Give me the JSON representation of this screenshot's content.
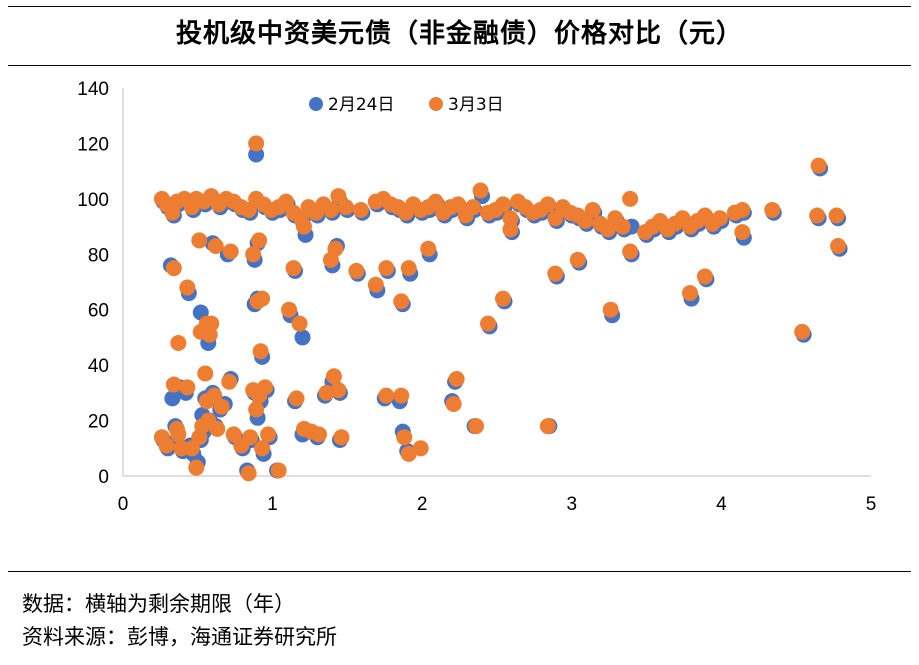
{
  "title": "投机级中资美元债（非金融债）价格对比（元）",
  "notes": {
    "data_note": "数据：横轴为剩余期限（年）",
    "source": "资料来源：彭博，海通证券研究所"
  },
  "chart_data": {
    "type": "scatter",
    "title": "投机级中资美元债（非金融债）价格对比（元）",
    "xlabel": "",
    "ylabel": "",
    "xlim": [
      0,
      5
    ],
    "ylim": [
      0,
      140
    ],
    "xticks": [
      "0",
      "1",
      "2",
      "3",
      "4",
      "5"
    ],
    "yticks": [
      "0",
      "20",
      "40",
      "60",
      "80",
      "100",
      "120",
      "140"
    ],
    "grid": false,
    "legend_position": "top-center",
    "series": [
      {
        "name": "2月24日",
        "color": "#4472C4",
        "points": [
          [
            0.27,
            99
          ],
          [
            0.3,
            97
          ],
          [
            0.34,
            94
          ],
          [
            0.37,
            98
          ],
          [
            0.42,
            99
          ],
          [
            0.47,
            96
          ],
          [
            0.5,
            99
          ],
          [
            0.55,
            98
          ],
          [
            0.6,
            100
          ],
          [
            0.65,
            97
          ],
          [
            0.7,
            99
          ],
          [
            0.75,
            98
          ],
          [
            0.8,
            96
          ],
          [
            0.85,
            95
          ],
          [
            0.9,
            99
          ],
          [
            0.95,
            97
          ],
          [
            1.0,
            95
          ],
          [
            1.05,
            96
          ],
          [
            1.1,
            98
          ],
          [
            1.15,
            94
          ],
          [
            1.2,
            92
          ],
          [
            1.25,
            96
          ],
          [
            1.3,
            94
          ],
          [
            1.35,
            97
          ],
          [
            1.4,
            95
          ],
          [
            1.45,
            99
          ],
          [
            1.5,
            96
          ],
          [
            1.6,
            95
          ],
          [
            1.7,
            98
          ],
          [
            1.75,
            99
          ],
          [
            1.8,
            97
          ],
          [
            1.85,
            96
          ],
          [
            1.9,
            94
          ],
          [
            1.95,
            97
          ],
          [
            2.0,
            95
          ],
          [
            2.05,
            96
          ],
          [
            2.1,
            98
          ],
          [
            2.15,
            94
          ],
          [
            2.2,
            96
          ],
          [
            2.25,
            97
          ],
          [
            2.3,
            93
          ],
          [
            2.35,
            96
          ],
          [
            2.4,
            101
          ],
          [
            2.45,
            94
          ],
          [
            2.5,
            95
          ],
          [
            2.55,
            97
          ],
          [
            2.6,
            92
          ],
          [
            2.65,
            98
          ],
          [
            2.7,
            96
          ],
          [
            2.75,
            94
          ],
          [
            2.8,
            95
          ],
          [
            2.85,
            97
          ],
          [
            2.9,
            92
          ],
          [
            2.95,
            96
          ],
          [
            3.0,
            94
          ],
          [
            3.05,
            93
          ],
          [
            3.1,
            91
          ],
          [
            3.15,
            95
          ],
          [
            3.2,
            90
          ],
          [
            3.25,
            88
          ],
          [
            3.3,
            92
          ],
          [
            3.35,
            89
          ],
          [
            3.4,
            90
          ],
          [
            3.5,
            87
          ],
          [
            3.55,
            89
          ],
          [
            3.6,
            91
          ],
          [
            3.65,
            88
          ],
          [
            3.7,
            90
          ],
          [
            3.75,
            92
          ],
          [
            3.8,
            89
          ],
          [
            3.85,
            91
          ],
          [
            3.9,
            93
          ],
          [
            3.95,
            90
          ],
          [
            4.0,
            92
          ],
          [
            4.1,
            94
          ],
          [
            4.15,
            95
          ],
          [
            4.35,
            95
          ],
          [
            4.65,
            93
          ],
          [
            4.78,
            93
          ],
          [
            0.32,
            76
          ],
          [
            0.44,
            66
          ],
          [
            0.52,
            59
          ],
          [
            0.55,
            53
          ],
          [
            0.57,
            48
          ],
          [
            0.6,
            84
          ],
          [
            0.7,
            80
          ],
          [
            0.88,
            78
          ],
          [
            0.88,
            62
          ],
          [
            0.93,
            43
          ],
          [
            0.89,
            116
          ],
          [
            0.9,
            84
          ],
          [
            0.9,
            64
          ],
          [
            1.12,
            58
          ],
          [
            1.15,
            74
          ],
          [
            1.2,
            50
          ],
          [
            1.22,
            87
          ],
          [
            1.4,
            76
          ],
          [
            1.43,
            83
          ],
          [
            1.57,
            73
          ],
          [
            1.7,
            67
          ],
          [
            1.77,
            74
          ],
          [
            1.87,
            62
          ],
          [
            1.92,
            73
          ],
          [
            2.05,
            80
          ],
          [
            2.45,
            54
          ],
          [
            2.55,
            63
          ],
          [
            2.6,
            88
          ],
          [
            2.9,
            72
          ],
          [
            3.05,
            77
          ],
          [
            3.27,
            58
          ],
          [
            3.4,
            80
          ],
          [
            3.8,
            64
          ],
          [
            3.9,
            71
          ],
          [
            4.15,
            86
          ],
          [
            4.55,
            51
          ],
          [
            4.66,
            111
          ],
          [
            4.79,
            82
          ],
          [
            0.27,
            13
          ],
          [
            0.3,
            10
          ],
          [
            0.33,
            28
          ],
          [
            0.35,
            18
          ],
          [
            0.36,
            12
          ],
          [
            0.38,
            32
          ],
          [
            0.4,
            9
          ],
          [
            0.42,
            30
          ],
          [
            0.45,
            11
          ],
          [
            0.47,
            8
          ],
          [
            0.5,
            5
          ],
          [
            0.52,
            13
          ],
          [
            0.53,
            22
          ],
          [
            0.54,
            16
          ],
          [
            0.55,
            28
          ],
          [
            0.58,
            20
          ],
          [
            0.6,
            30
          ],
          [
            0.62,
            18
          ],
          [
            0.65,
            24
          ],
          [
            0.68,
            26
          ],
          [
            0.72,
            35
          ],
          [
            0.75,
            14
          ],
          [
            0.8,
            10
          ],
          [
            0.83,
            2
          ],
          [
            0.86,
            13
          ],
          [
            0.88,
            30
          ],
          [
            0.9,
            21
          ],
          [
            0.92,
            27
          ],
          [
            0.94,
            8
          ],
          [
            0.96,
            31
          ],
          [
            0.98,
            14
          ],
          [
            1.03,
            2
          ],
          [
            1.15,
            27
          ],
          [
            1.2,
            15
          ],
          [
            1.25,
            16
          ],
          [
            1.3,
            14
          ],
          [
            1.35,
            29
          ],
          [
            1.4,
            34
          ],
          [
            1.45,
            30
          ],
          [
            1.45,
            13
          ],
          [
            1.75,
            28
          ],
          [
            1.85,
            27
          ],
          [
            1.87,
            16
          ],
          [
            1.9,
            9
          ],
          [
            2.2,
            27
          ],
          [
            2.22,
            34
          ],
          [
            2.35,
            18
          ],
          [
            2.85,
            18
          ]
        ]
      },
      {
        "name": "3月3日",
        "color": "#ED7D31",
        "points": [
          [
            0.26,
            100
          ],
          [
            0.29,
            98
          ],
          [
            0.33,
            95
          ],
          [
            0.36,
            99
          ],
          [
            0.41,
            100
          ],
          [
            0.46,
            97
          ],
          [
            0.49,
            100
          ],
          [
            0.54,
            99
          ],
          [
            0.59,
            101
          ],
          [
            0.64,
            98
          ],
          [
            0.69,
            100
          ],
          [
            0.74,
            99
          ],
          [
            0.79,
            97
          ],
          [
            0.84,
            96
          ],
          [
            0.89,
            100
          ],
          [
            0.94,
            98
          ],
          [
            0.99,
            96
          ],
          [
            1.04,
            97
          ],
          [
            1.09,
            99
          ],
          [
            1.14,
            95
          ],
          [
            1.19,
            93
          ],
          [
            1.24,
            97
          ],
          [
            1.29,
            95
          ],
          [
            1.34,
            98
          ],
          [
            1.39,
            96
          ],
          [
            1.44,
            101
          ],
          [
            1.49,
            97
          ],
          [
            1.59,
            96
          ],
          [
            1.69,
            99
          ],
          [
            1.74,
            100
          ],
          [
            1.79,
            98
          ],
          [
            1.84,
            97
          ],
          [
            1.89,
            95
          ],
          [
            1.94,
            98
          ],
          [
            1.99,
            96
          ],
          [
            2.04,
            97
          ],
          [
            2.09,
            99
          ],
          [
            2.14,
            95
          ],
          [
            2.19,
            97
          ],
          [
            2.24,
            98
          ],
          [
            2.29,
            94
          ],
          [
            2.34,
            97
          ],
          [
            2.39,
            103
          ],
          [
            2.44,
            95
          ],
          [
            2.49,
            96
          ],
          [
            2.54,
            98
          ],
          [
            2.59,
            93
          ],
          [
            2.64,
            99
          ],
          [
            2.69,
            97
          ],
          [
            2.74,
            95
          ],
          [
            2.79,
            96
          ],
          [
            2.84,
            98
          ],
          [
            2.89,
            93
          ],
          [
            2.94,
            97
          ],
          [
            2.99,
            95
          ],
          [
            3.04,
            94
          ],
          [
            3.09,
            92
          ],
          [
            3.14,
            96
          ],
          [
            3.19,
            91
          ],
          [
            3.24,
            89
          ],
          [
            3.29,
            93
          ],
          [
            3.34,
            90
          ],
          [
            3.39,
            100
          ],
          [
            3.49,
            88
          ],
          [
            3.54,
            90
          ],
          [
            3.59,
            92
          ],
          [
            3.64,
            89
          ],
          [
            3.69,
            91
          ],
          [
            3.74,
            93
          ],
          [
            3.79,
            90
          ],
          [
            3.84,
            92
          ],
          [
            3.89,
            94
          ],
          [
            3.94,
            91
          ],
          [
            3.99,
            93
          ],
          [
            4.09,
            95
          ],
          [
            4.14,
            96
          ],
          [
            4.34,
            96
          ],
          [
            4.64,
            94
          ],
          [
            4.77,
            94
          ],
          [
            0.34,
            75
          ],
          [
            0.43,
            68
          ],
          [
            0.51,
            85
          ],
          [
            0.56,
            55
          ],
          [
            0.58,
            51
          ],
          [
            0.62,
            83
          ],
          [
            0.72,
            81
          ],
          [
            0.87,
            80
          ],
          [
            0.9,
            63
          ],
          [
            0.92,
            45
          ],
          [
            0.89,
            120
          ],
          [
            0.91,
            85
          ],
          [
            0.93,
            64
          ],
          [
            1.11,
            60
          ],
          [
            1.14,
            75
          ],
          [
            1.18,
            55
          ],
          [
            1.21,
            90
          ],
          [
            1.39,
            78
          ],
          [
            1.42,
            82
          ],
          [
            1.56,
            74
          ],
          [
            1.69,
            69
          ],
          [
            1.76,
            75
          ],
          [
            1.86,
            63
          ],
          [
            1.91,
            75
          ],
          [
            2.04,
            82
          ],
          [
            2.44,
            55
          ],
          [
            2.54,
            64
          ],
          [
            2.59,
            89
          ],
          [
            2.89,
            73
          ],
          [
            3.04,
            78
          ],
          [
            3.26,
            60
          ],
          [
            3.39,
            81
          ],
          [
            3.79,
            66
          ],
          [
            3.89,
            72
          ],
          [
            4.14,
            88
          ],
          [
            4.54,
            52
          ],
          [
            4.65,
            112
          ],
          [
            4.78,
            83
          ],
          [
            0.26,
            14
          ],
          [
            0.29,
            11
          ],
          [
            0.34,
            33
          ],
          [
            0.36,
            17
          ],
          [
            0.37,
            15
          ],
          [
            0.37,
            48
          ],
          [
            0.39,
            10
          ],
          [
            0.43,
            32
          ],
          [
            0.46,
            10
          ],
          [
            0.49,
            3
          ],
          [
            0.51,
            14
          ],
          [
            0.52,
            52
          ],
          [
            0.53,
            18
          ],
          [
            0.55,
            37
          ],
          [
            0.56,
            27
          ],
          [
            0.57,
            20
          ],
          [
            0.59,
            55
          ],
          [
            0.61,
            29
          ],
          [
            0.63,
            17
          ],
          [
            0.66,
            25
          ],
          [
            0.71,
            34
          ],
          [
            0.74,
            15
          ],
          [
            0.79,
            11
          ],
          [
            0.84,
            1
          ],
          [
            0.85,
            14
          ],
          [
            0.87,
            31
          ],
          [
            0.89,
            24
          ],
          [
            0.91,
            29
          ],
          [
            0.93,
            10
          ],
          [
            0.95,
            32
          ],
          [
            0.97,
            15
          ],
          [
            1.04,
            2
          ],
          [
            1.16,
            28
          ],
          [
            1.21,
            17
          ],
          [
            1.26,
            16
          ],
          [
            1.31,
            15
          ],
          [
            1.36,
            30
          ],
          [
            1.41,
            36
          ],
          [
            1.44,
            31
          ],
          [
            1.46,
            14
          ],
          [
            1.76,
            29
          ],
          [
            1.86,
            29
          ],
          [
            1.88,
            14
          ],
          [
            1.91,
            8
          ],
          [
            1.99,
            10
          ],
          [
            2.21,
            26
          ],
          [
            2.23,
            35
          ],
          [
            2.36,
            18
          ],
          [
            2.84,
            18
          ]
        ]
      }
    ]
  }
}
